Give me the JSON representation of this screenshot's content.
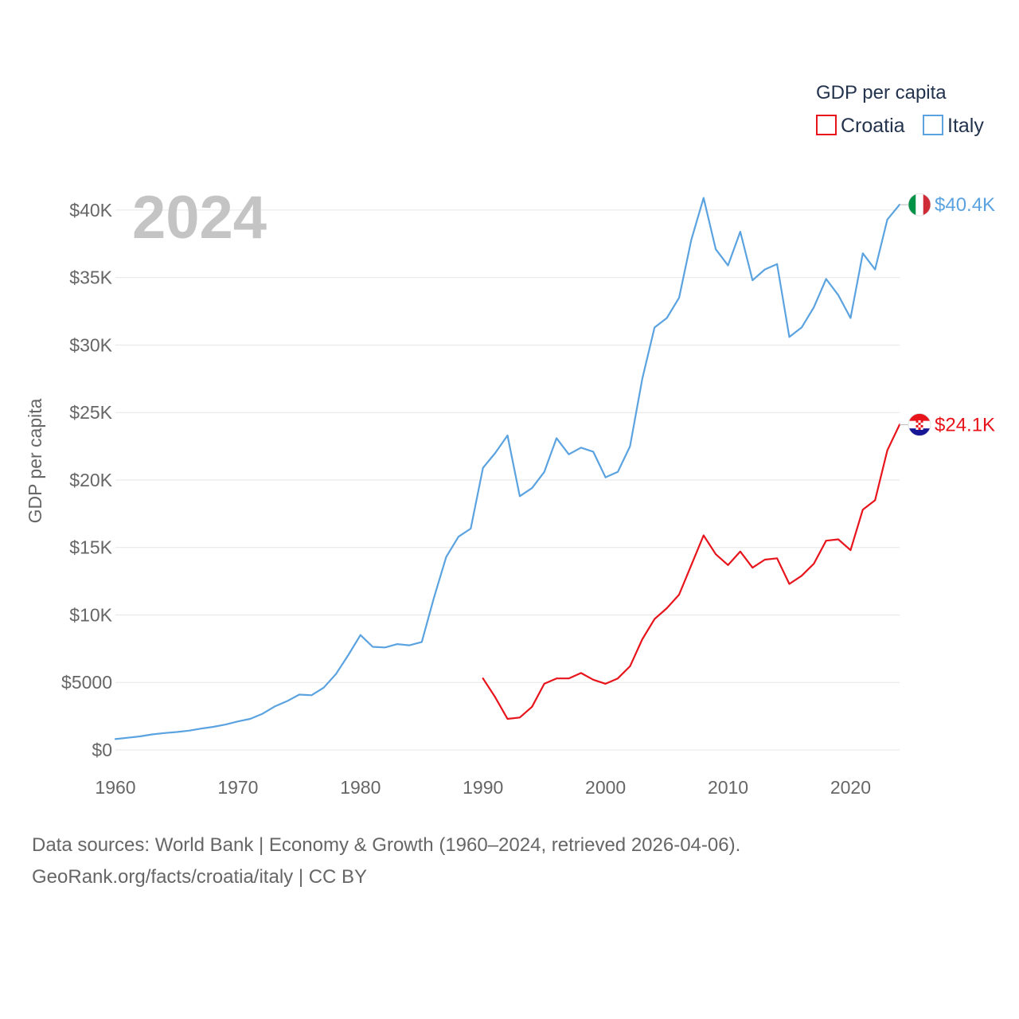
{
  "chart_data": {
    "type": "line",
    "ylabel": "GDP per capita",
    "legend_title": "GDP per capita",
    "legend_placement": "top-right",
    "year_label": "2024",
    "xlim": [
      1960,
      2024
    ],
    "ylim": [
      0,
      42000
    ],
    "x_ticks": [
      1960,
      1970,
      1980,
      1990,
      2000,
      2010,
      2020
    ],
    "y_ticks": [
      {
        "value": 0,
        "label": "$0"
      },
      {
        "value": 5000,
        "label": "$5000"
      },
      {
        "value": 10000,
        "label": "$10K"
      },
      {
        "value": 15000,
        "label": "$15K"
      },
      {
        "value": 20000,
        "label": "$20K"
      },
      {
        "value": 25000,
        "label": "$25K"
      },
      {
        "value": 30000,
        "label": "$30K"
      },
      {
        "value": 35000,
        "label": "$35K"
      },
      {
        "value": 40000,
        "label": "$40K"
      }
    ],
    "grid": true,
    "series": [
      {
        "name": "Croatia",
        "color": "#e8141c",
        "flag_icon": "croatia-flag-icon",
        "end_label": "$24.1K",
        "x": [
          1990,
          1991,
          1992,
          1993,
          1994,
          1995,
          1996,
          1997,
          1998,
          1999,
          2000,
          2001,
          2002,
          2003,
          2004,
          2005,
          2006,
          2007,
          2008,
          2009,
          2010,
          2011,
          2012,
          2013,
          2014,
          2015,
          2016,
          2017,
          2018,
          2019,
          2020,
          2021,
          2022,
          2023,
          2024
        ],
        "values": [
          5300,
          3900,
          2300,
          2400,
          3200,
          4900,
          5300,
          5300,
          5700,
          5200,
          4900,
          5300,
          6200,
          8200,
          9700,
          10500,
          11500,
          13700,
          15900,
          14500,
          13700,
          14700,
          13500,
          14100,
          14200,
          12300,
          12900,
          13800,
          15500,
          15600,
          14800,
          17800,
          18500,
          22200,
          24100
        ]
      },
      {
        "name": "Italy",
        "color": "#5ba3e0",
        "flag_icon": "italy-flag-icon",
        "end_label": "$40.4K",
        "x": [
          1960,
          1961,
          1962,
          1963,
          1964,
          1965,
          1966,
          1967,
          1968,
          1969,
          1970,
          1971,
          1972,
          1973,
          1974,
          1975,
          1976,
          1977,
          1978,
          1979,
          1980,
          1981,
          1982,
          1983,
          1984,
          1985,
          1986,
          1987,
          1988,
          1989,
          1990,
          1991,
          1992,
          1993,
          1994,
          1995,
          1996,
          1997,
          1998,
          1999,
          2000,
          2001,
          2002,
          2003,
          2004,
          2005,
          2006,
          2007,
          2008,
          2009,
          2010,
          2011,
          2012,
          2013,
          2014,
          2015,
          2016,
          2017,
          2018,
          2019,
          2020,
          2021,
          2022,
          2023,
          2024
        ],
        "values": [
          800,
          900,
          1000,
          1150,
          1250,
          1330,
          1430,
          1580,
          1710,
          1880,
          2110,
          2300,
          2680,
          3220,
          3610,
          4100,
          4050,
          4610,
          5620,
          7020,
          8510,
          7640,
          7590,
          7840,
          7750,
          8000,
          11300,
          14300,
          15800,
          16400,
          20900,
          22000,
          23300,
          18800,
          19400,
          20600,
          23100,
          21900,
          22400,
          22100,
          20200,
          20600,
          22500,
          27500,
          31300,
          32000,
          33500,
          37800,
          40900,
          37100,
          35900,
          38400,
          34800,
          35600,
          36000,
          30600,
          31300,
          32800,
          34900,
          33700,
          32000,
          36800,
          35600,
          39300,
          40400
        ]
      }
    ]
  },
  "footer": {
    "line1": "Data sources: World Bank | Economy & Growth (1960–2024, retrieved 2026-04-06).",
    "line2": "GeoRank.org/facts/croatia/italy | CC BY"
  }
}
